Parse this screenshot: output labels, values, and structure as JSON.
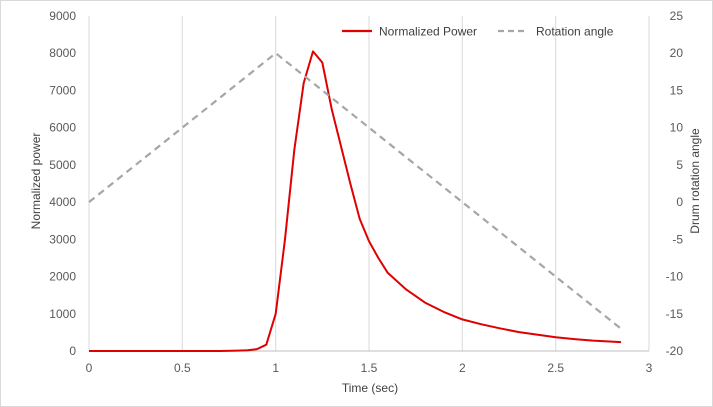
{
  "chart_data": {
    "type": "line",
    "title": "",
    "xlabel": "Time (sec)",
    "ylabel": "Normalized power",
    "y2label": "Drum rotation angle",
    "xlim": [
      0,
      3
    ],
    "ylim": [
      0,
      9000
    ],
    "y2lim": [
      -20,
      25
    ],
    "x_ticks": [
      "0",
      "0.5",
      "1",
      "1.5",
      "2",
      "2.5",
      "3"
    ],
    "y_ticks": [
      "0",
      "1000",
      "2000",
      "3000",
      "4000",
      "5000",
      "6000",
      "7000",
      "8000",
      "9000"
    ],
    "y2_ticks": [
      "-20",
      "-15",
      "-10",
      "-5",
      "0",
      "5",
      "10",
      "15",
      "20",
      "25"
    ],
    "grid": "vertical",
    "legend_position": "top-right",
    "series": [
      {
        "name": "Normalized Power",
        "axis": "left",
        "color": "#e00000",
        "style": "solid",
        "x": [
          0,
          0.1,
          0.2,
          0.3,
          0.4,
          0.5,
          0.6,
          0.7,
          0.8,
          0.85,
          0.9,
          0.95,
          1.0,
          1.05,
          1.1,
          1.15,
          1.2,
          1.25,
          1.3,
          1.35,
          1.4,
          1.45,
          1.5,
          1.55,
          1.6,
          1.7,
          1.8,
          1.9,
          2.0,
          2.1,
          2.2,
          2.3,
          2.4,
          2.5,
          2.6,
          2.7,
          2.85
        ],
        "y": [
          0,
          0,
          0,
          0,
          0,
          0,
          0,
          0,
          10,
          20,
          50,
          170,
          1000,
          3000,
          5400,
          7200,
          8050,
          7750,
          6500,
          5500,
          4500,
          3550,
          2950,
          2500,
          2100,
          1650,
          1300,
          1050,
          850,
          720,
          610,
          510,
          440,
          370,
          320,
          280,
          240
        ]
      },
      {
        "name": "Rotation angle",
        "axis": "right",
        "color": "#a6a6a6",
        "style": "dashed",
        "x": [
          0,
          1.0,
          2.85
        ],
        "y": [
          0,
          20,
          -17
        ]
      }
    ]
  }
}
